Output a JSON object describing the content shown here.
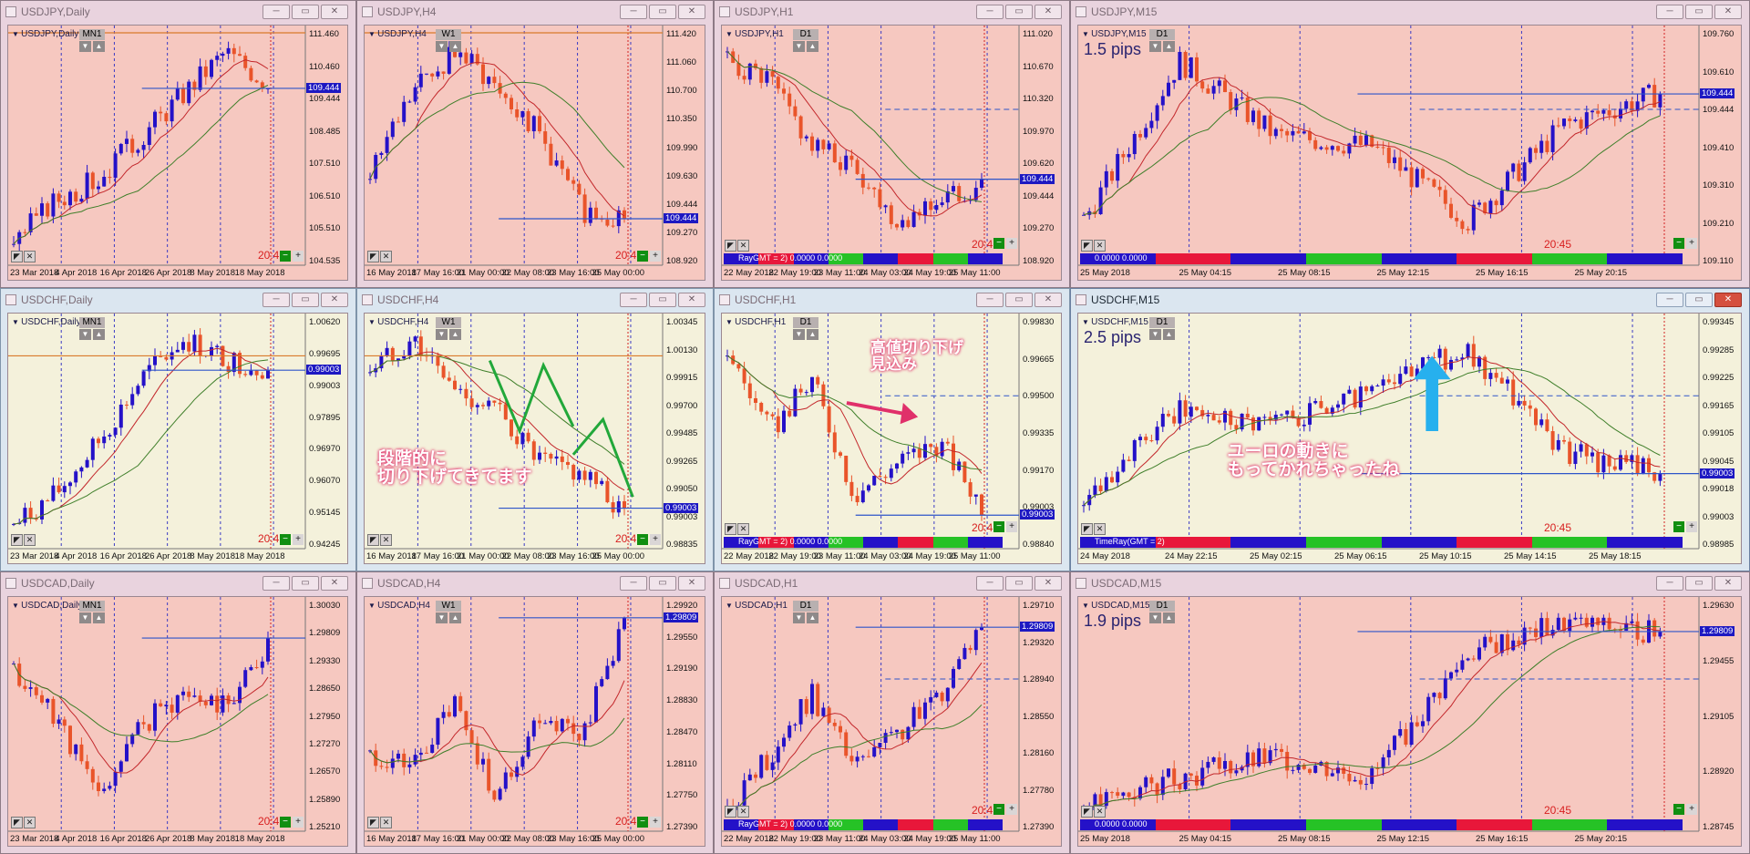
{
  "colors": {
    "bull": "#2411c8",
    "bear": "#e9542a",
    "warm_bg": "#f6c8c0",
    "cool_bg": "#f4f1db",
    "ma_fast": "#c3272b",
    "ma_slow": "#3f7f2a",
    "hline": "#2e55c9",
    "vline": "#3b3bc4",
    "vline_red": "#d22222",
    "orange_line": "#d97a2b",
    "highlight": "#e0306a",
    "arrow_green": "#22a83a",
    "arrow_cyan": "#27b0ee"
  },
  "icons": {
    "window": "chart-window-icon",
    "minimize": "minimize-icon",
    "restore": "restore-icon",
    "close": "close-icon"
  },
  "windows": [
    {
      "title": "USDJPY,Daily",
      "symbol": "USDJPY,Daily",
      "tf": "MN1",
      "pips": "",
      "price": "109.444",
      "axis": [
        "111.460",
        "110.460",
        "109.444",
        "108.485",
        "107.510",
        "106.510",
        "105.510",
        "104.535"
      ],
      "dates": [
        "23 Mar 2018",
        "4 Apr 2018",
        "16 Apr 2018",
        "26 Apr 2018",
        "8 May 2018",
        "18 May 2018"
      ],
      "time": "20:4",
      "ind": "",
      "trend": [
        0.05,
        0.25,
        0.35,
        0.55,
        0.75,
        0.95,
        0.8
      ],
      "style": "warm"
    },
    {
      "title": "USDJPY,H4",
      "symbol": "USDJPY,H4",
      "tf": "W1",
      "pips": "",
      "price": "109.444",
      "axis": [
        "111.420",
        "111.060",
        "110.700",
        "110.350",
        "109.990",
        "109.630",
        "109.444",
        "109.270",
        "108.920"
      ],
      "dates": [
        "16 May 2018",
        "17 May 16:00",
        "21 May 00:00",
        "22 May 08:00",
        "23 May 16:00",
        "25 May 00:00"
      ],
      "time": "20:45",
      "ind": "",
      "trend": [
        0.4,
        0.75,
        0.95,
        0.8,
        0.55,
        0.2,
        0.15
      ],
      "style": "warm"
    },
    {
      "title": "USDJPY,H1",
      "symbol": "USDJPY,H1",
      "tf": "D1",
      "pips": "",
      "price": "109.444",
      "axis": [
        "111.020",
        "110.670",
        "110.320",
        "109.970",
        "109.620",
        "109.444",
        "109.270",
        "108.920"
      ],
      "dates": [
        "22 May 2018",
        "22 May 19:00",
        "23 May 11:00",
        "24 May 03:00",
        "24 May 19:00",
        "25 May 11:00"
      ],
      "time": "20:45",
      "ind": "RayGMT = 2) 0.0000 0.0000",
      "trend": [
        0.9,
        0.8,
        0.5,
        0.4,
        0.15,
        0.25,
        0.3
      ],
      "style": "warm"
    },
    {
      "title": "USDJPY,M15",
      "symbol": "USDJPY,M15",
      "tf": "D1",
      "pips": "1.5 pips",
      "price": "109.444",
      "axis": [
        "109.760",
        "109.610",
        "109.444",
        "109.410",
        "109.310",
        "109.210",
        "109.110"
      ],
      "dates": [
        "25 May 2018",
        "25 May 04:15",
        "25 May 08:15",
        "25 May 12:15",
        "25 May 16:15",
        "25 May 20:15"
      ],
      "time": "20:45",
      "ind": "0.0000 0.0000",
      "trend": [
        0.15,
        0.9,
        0.55,
        0.5,
        0.15,
        0.6,
        0.75
      ],
      "style": "warm"
    },
    {
      "title": "USDCHF,Daily",
      "symbol": "USDCHF,Daily",
      "tf": "MN1",
      "pips": "",
      "price": "0.99003",
      "axis": [
        "1.00620",
        "0.99695",
        "0.99003",
        "0.97895",
        "0.96970",
        "0.96070",
        "0.95145",
        "0.94245"
      ],
      "dates": [
        "23 Mar 2018",
        "4 Apr 2018",
        "16 Apr 2018",
        "26 Apr 2018",
        "8 May 2018",
        "18 May 2018"
      ],
      "time": "20:4",
      "ind": "",
      "trend": [
        0.05,
        0.2,
        0.45,
        0.75,
        0.95,
        0.85,
        0.8
      ],
      "style": "cool"
    },
    {
      "title": "USDCHF,H4",
      "symbol": "USDCHF,H4",
      "tf": "W1",
      "pips": "",
      "price": "0.99003",
      "axis": [
        "1.00345",
        "1.00130",
        "0.99915",
        "0.99700",
        "0.99485",
        "0.99265",
        "0.99050",
        "0.99003",
        "0.98835"
      ],
      "dates": [
        "16 May 2018",
        "17 May 16:00",
        "21 May 00:00",
        "22 May 08:00",
        "23 May 16:00",
        "25 May 00:00"
      ],
      "time": "20:45",
      "ind": "",
      "trend": [
        0.8,
        0.95,
        0.7,
        0.6,
        0.35,
        0.3,
        0.1
      ],
      "style": "cool"
    },
    {
      "title": "USDCHF,H1",
      "symbol": "USDCHF,H1",
      "tf": "D1",
      "pips": "",
      "price": "0.99003",
      "axis": [
        "0.99830",
        "0.99665",
        "0.99500",
        "0.99335",
        "0.99170",
        "0.99003",
        "0.98840"
      ],
      "dates": [
        "22 May 2018",
        "22 May 19:00",
        "23 May 11:00",
        "24 May 03:00",
        "24 May 19:00",
        "25 May 11:00"
      ],
      "time": "20:45",
      "ind": "RayGMT = 2) 0.0000 0.0000",
      "trend": [
        0.9,
        0.5,
        0.75,
        0.2,
        0.35,
        0.45,
        0.15
      ],
      "style": "cool"
    },
    {
      "title": "USDCHF,M15",
      "symbol": "USDCHF,M15",
      "tf": "D1",
      "pips": "2.5 pips",
      "price": "0.99003",
      "axis": [
        "0.99345",
        "0.99285",
        "0.99225",
        "0.99165",
        "0.99105",
        "0.99045",
        "0.99018",
        "0.99003",
        "0.98985"
      ],
      "dates": [
        "24 May 2018",
        "24 May 22:15",
        "25 May 02:15",
        "25 May 06:15",
        "25 May 10:15",
        "25 May 14:15",
        "25 May 18:15"
      ],
      "time": "20:45",
      "ind": "TimeRay(GMT = 2)",
      "trend": [
        0.2,
        0.6,
        0.55,
        0.7,
        0.9,
        0.4,
        0.3
      ],
      "style": "cool"
    },
    {
      "title": "USDCAD,Daily",
      "symbol": "USDCAD,Daily",
      "tf": "MN1",
      "pips": "",
      "price": "",
      "axis": [
        "1.30030",
        "1.29809",
        "1.29330",
        "1.28650",
        "1.27950",
        "1.27270",
        "1.26570",
        "1.25890",
        "1.25210"
      ],
      "dates": [
        "23 Mar 2018",
        "4 Apr 2018",
        "16 Apr 2018",
        "26 Apr 2018",
        "8 May 2018",
        "18 May 2018"
      ],
      "time": "20:4",
      "ind": "",
      "trend": [
        0.7,
        0.5,
        0.1,
        0.45,
        0.6,
        0.55,
        0.85
      ],
      "style": "warm"
    },
    {
      "title": "USDCAD,H4",
      "symbol": "USDCAD,H4",
      "tf": "W1",
      "pips": "",
      "price": "1.29809",
      "axis": [
        "1.29920",
        "1.29550",
        "1.29190",
        "1.28830",
        "1.28470",
        "1.28110",
        "1.27750",
        "1.27390"
      ],
      "dates": [
        "16 May 2018",
        "17 May 16:00",
        "21 May 00:00",
        "22 May 08:00",
        "23 May 16:00",
        "25 May 00:00"
      ],
      "time": "20:45",
      "ind": "",
      "trend": [
        0.3,
        0.25,
        0.55,
        0.1,
        0.5,
        0.4,
        0.95
      ],
      "style": "warm"
    },
    {
      "title": "USDCAD,H1",
      "symbol": "USDCAD,H1",
      "tf": "D1",
      "pips": "",
      "price": "1.29809",
      "axis": [
        "1.29710",
        "1.29320",
        "1.28940",
        "1.28550",
        "1.28160",
        "1.27780",
        "1.27390"
      ],
      "dates": [
        "22 May 2018",
        "22 May 19:00",
        "23 May 11:00",
        "24 May 03:00",
        "24 May 19:00",
        "25 May 11:00"
      ],
      "time": "20:45",
      "ind": "RayGMT = 2) 0.0000 0.0000",
      "trend": [
        0.05,
        0.3,
        0.6,
        0.25,
        0.4,
        0.6,
        0.95
      ],
      "style": "warm"
    },
    {
      "title": "USDCAD,M15",
      "symbol": "USDCAD,M15",
      "tf": "D1",
      "pips": "1.9 pips",
      "price": "1.29809",
      "axis": [
        "1.29630",
        "1.29455",
        "1.29105",
        "1.28920",
        "1.28745"
      ],
      "dates": [
        "25 May 2018",
        "25 May 04:15",
        "25 May 08:15",
        "25 May 12:15",
        "25 May 16:15",
        "25 May 20:15"
      ],
      "time": "20:45",
      "ind": "0.0000 0.0000",
      "trend": [
        0.05,
        0.2,
        0.3,
        0.2,
        0.8,
        0.95,
        0.9
      ],
      "style": "warm"
    }
  ],
  "annotations": {
    "chf_h4": [
      "段階的に",
      "切り下げてきてます"
    ],
    "chf_h1": [
      "高値切り下げ",
      "見込み"
    ],
    "chf_m15": [
      "ユーロの動きに",
      "もってかれちゃったね"
    ]
  }
}
